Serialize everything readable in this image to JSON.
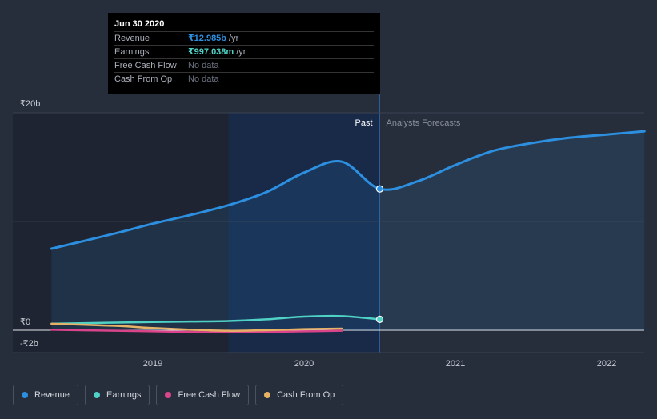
{
  "chart_data": {
    "type": "area",
    "currency_symbol": "₹",
    "y_ticks": [
      {
        "label": "₹20b",
        "value": 20
      },
      {
        "label": "₹0",
        "value": 0
      },
      {
        "label": "-₹2b",
        "value": -2
      }
    ],
    "ylim": [
      -2,
      20
    ],
    "x_ticks": [
      {
        "label": "2019",
        "value": 2019.0
      },
      {
        "label": "2020",
        "value": 2020.0
      },
      {
        "label": "2021",
        "value": 2021.0
      },
      {
        "label": "2022",
        "value": 2022.0
      }
    ],
    "xlim": [
      2018.17,
      2022.25
    ],
    "past_label": "Past",
    "forecast_label": "Analysts Forecasts",
    "highlight_start": 2019.5,
    "divider_x": 2020.5,
    "series": [
      {
        "name": "Revenue",
        "color": "#2d8fe0",
        "unit": "billions",
        "x": [
          2018.33,
          2018.75,
          2019.0,
          2019.25,
          2019.5,
          2019.75,
          2020.0,
          2020.25,
          2020.5,
          2020.75,
          2021.0,
          2021.25,
          2021.5,
          2021.75,
          2022.0,
          2022.25
        ],
        "y": [
          7.5,
          8.9,
          9.8,
          10.6,
          11.5,
          12.7,
          14.5,
          15.5,
          13.0,
          13.7,
          15.2,
          16.5,
          17.2,
          17.7,
          18.0,
          18.3
        ]
      },
      {
        "name": "Earnings",
        "color": "#4fd1c5",
        "unit": "billions",
        "x": [
          2018.33,
          2018.75,
          2019.0,
          2019.25,
          2019.5,
          2019.75,
          2020.0,
          2020.25,
          2020.5
        ],
        "y": [
          0.6,
          0.7,
          0.75,
          0.8,
          0.85,
          1.0,
          1.25,
          1.3,
          1.0
        ]
      },
      {
        "name": "Free Cash Flow",
        "color": "#d9448a",
        "unit": "billions",
        "x": [
          2018.33,
          2018.75,
          2019.0,
          2019.25,
          2019.5,
          2019.75,
          2020.0,
          2020.25
        ],
        "y": [
          0.05,
          -0.05,
          -0.1,
          -0.15,
          -0.2,
          -0.15,
          -0.1,
          -0.05
        ]
      },
      {
        "name": "Cash From Op",
        "color": "#e8b266",
        "unit": "billions",
        "x": [
          2018.33,
          2018.75,
          2019.0,
          2019.25,
          2019.5,
          2019.75,
          2020.0,
          2020.25
        ],
        "y": [
          0.6,
          0.4,
          0.2,
          0.05,
          -0.05,
          0.0,
          0.1,
          0.15
        ]
      }
    ],
    "markers": [
      {
        "series": "Revenue",
        "x": 2020.5,
        "y": 13.0
      },
      {
        "series": "Earnings",
        "x": 2020.5,
        "y": 1.0
      }
    ]
  },
  "tooltip": {
    "date": "Jun 30 2020",
    "rows": [
      {
        "label": "Revenue",
        "value": "₹12.985b",
        "unit": "/yr",
        "color": "#2d8fe0"
      },
      {
        "label": "Earnings",
        "value": "₹997.038m",
        "unit": "/yr",
        "color": "#4fd1c5"
      },
      {
        "label": "Free Cash Flow",
        "value": "No data",
        "unit": "",
        "color": ""
      },
      {
        "label": "Cash From Op",
        "value": "No data",
        "unit": "",
        "color": ""
      }
    ]
  },
  "legend": [
    {
      "label": "Revenue",
      "color": "#2d8fe0"
    },
    {
      "label": "Earnings",
      "color": "#4fd1c5"
    },
    {
      "label": "Free Cash Flow",
      "color": "#d9448a"
    },
    {
      "label": "Cash From Op",
      "color": "#e8b266"
    }
  ]
}
